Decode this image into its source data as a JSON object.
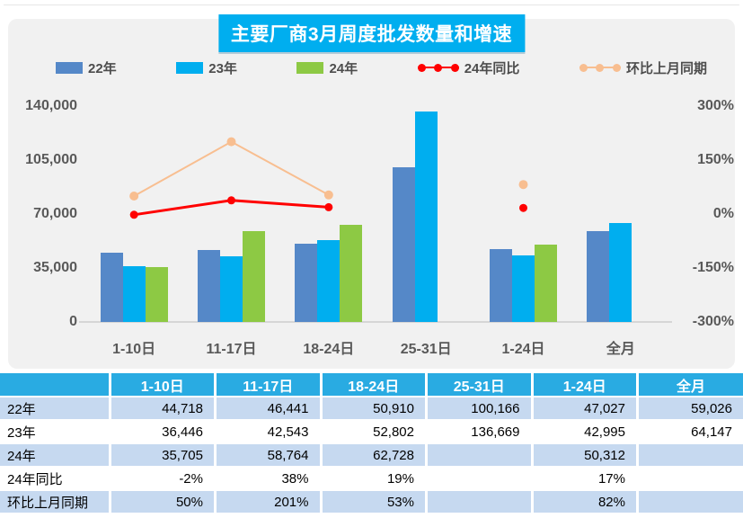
{
  "title": "主要厂商3月周度批发数量和增速",
  "legend": [
    {
      "label": "22年",
      "type": "bar",
      "color": "#5588c8"
    },
    {
      "label": "23年",
      "type": "bar",
      "color": "#00aeef"
    },
    {
      "label": "24年",
      "type": "bar",
      "color": "#8dc944"
    },
    {
      "label": "24年同比",
      "type": "line",
      "color": "#ff0000"
    },
    {
      "label": "环比上月同期",
      "type": "line",
      "color": "#f8be90"
    }
  ],
  "chart_data": {
    "type": "bar+line combo",
    "categories": [
      "1-10日",
      "11-17日",
      "18-24日",
      "25-31日",
      "1-24日",
      "全月"
    ],
    "bar_series": [
      {
        "name": "22年",
        "color": "#5588c8",
        "values": [
          44718,
          46441,
          50910,
          100166,
          47027,
          59026
        ]
      },
      {
        "name": "23年",
        "color": "#00aeef",
        "values": [
          36446,
          42543,
          52802,
          136669,
          42995,
          64147
        ]
      },
      {
        "name": "24年",
        "color": "#8dc944",
        "values": [
          35705,
          58764,
          62728,
          null,
          50312,
          null
        ]
      }
    ],
    "line_series": [
      {
        "name": "24年同比",
        "color": "#ff0000",
        "axis": "right",
        "values_pct": [
          -2,
          38,
          19,
          null,
          17,
          null
        ]
      },
      {
        "name": "环比上月同期",
        "color": "#f8be90",
        "axis": "right",
        "values_pct": [
          50,
          201,
          53,
          null,
          82,
          null
        ]
      }
    ],
    "left_axis": {
      "min": 0,
      "max": 140000,
      "ticks": [
        "140,000",
        "105,000",
        "70,000",
        "35,000",
        "0"
      ]
    },
    "right_axis": {
      "min": -300,
      "max": 300,
      "ticks": [
        "300%",
        "150%",
        "0%",
        "-150%",
        "-300%"
      ]
    },
    "grid": "off",
    "legend_position": "top"
  },
  "table": {
    "columns": [
      "",
      "1-10日",
      "11-17日",
      "18-24日",
      "25-31日",
      "1-24日",
      "全月"
    ],
    "rows": [
      {
        "label": "22年",
        "cells": [
          "44,718",
          "46,441",
          "50,910",
          "100,166",
          "47,027",
          "59,026"
        ]
      },
      {
        "label": "23年",
        "cells": [
          "36,446",
          "42,543",
          "52,802",
          "136,669",
          "42,995",
          "64,147"
        ]
      },
      {
        "label": "24年",
        "cells": [
          "35,705",
          "58,764",
          "62,728",
          "",
          "50,312",
          ""
        ]
      },
      {
        "label": "24年同比",
        "cells": [
          "-2%",
          "38%",
          "19%",
          "",
          "17%",
          ""
        ]
      },
      {
        "label": "环比上月同期",
        "cells": [
          "50%",
          "201%",
          "53%",
          "",
          "82%",
          ""
        ]
      }
    ]
  },
  "colors": {
    "title_bg": "#00aeef",
    "card_bg": "#f1f1f1",
    "table_header_bg": "#29abe2",
    "table_alt_row_bg": "#c6d9f0",
    "axis_text": "#595959",
    "bar_blue": "#5588c8",
    "bar_cyan": "#00aeef",
    "bar_green": "#8dc944",
    "line_red": "#ff0000",
    "line_peach": "#f8be90"
  }
}
